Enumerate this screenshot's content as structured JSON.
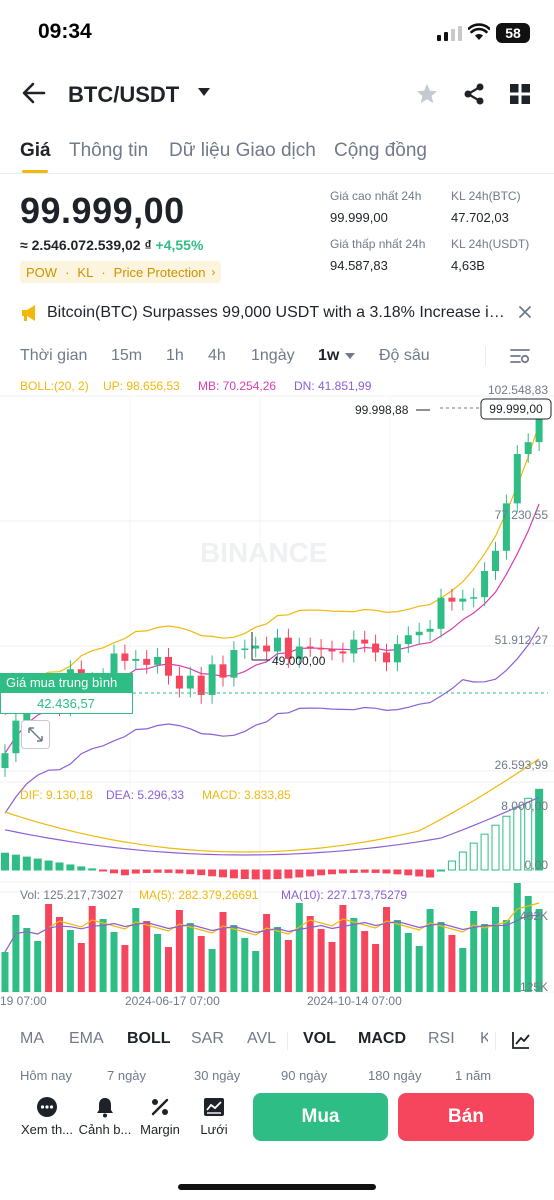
{
  "status": {
    "time": "09:34",
    "battery": "58"
  },
  "header": {
    "pair": "BTC/USDT"
  },
  "tabs": [
    "Giá",
    "Thông tin",
    "Dữ liệu Giao dịch",
    "Cộng đồng"
  ],
  "ticker": {
    "last_price": "99.999,00",
    "fiat_value": "≈ 2.546.072.539,02 ₫",
    "change": "+4,55%",
    "tags": [
      "POW",
      "KL",
      "Price Protection"
    ],
    "stats": {
      "high_label": "Giá cao nhất 24h",
      "high": "99.999,00",
      "vol_btc_label": "KL 24h(BTC)",
      "vol_btc": "47.702,03",
      "low_label": "Giá thấp nhất 24h",
      "low": "94.587,83",
      "vol_usdt_label": "KL 24h(USDT)",
      "vol_usdt": "4,63B"
    }
  },
  "news": {
    "text": "Bitcoin(BTC) Surpasses 99,000 USDT with a 3.18% Increase in..."
  },
  "timeframes": [
    "Thời gian",
    "15m",
    "1h",
    "4h",
    "1ngày",
    "1w",
    "Độ sâu"
  ],
  "selected_timeframe": "1w",
  "chart": {
    "boll_legend": {
      "boll": "BOLL:(20, 2)",
      "up": "UP: 98.656,53",
      "mb": "MB: 70.254,26",
      "dn": "DN: 41.851,99"
    },
    "price_axis": [
      "102.548,83",
      "77.230,55",
      "51.912,27",
      "26.593,99"
    ],
    "last_price_tag": "99.999,00",
    "high_marker": "99.998,88",
    "low_marker": "49.000,00",
    "avg_buy_label": "Giá mua trung bình",
    "avg_buy_value": "42.436,57",
    "watermark": "BINANCE",
    "macd_legend": {
      "dif": "DIF: 9.130,18",
      "dea": "DEA: 5.296,33",
      "macd": "MACD: 3.833,85"
    },
    "macd_axis": [
      "8.000,00",
      "0,00"
    ],
    "vol_legend": {
      "vol": "Vol: 125.217,73027",
      "ma5": "MA(5): 282.379,26691",
      "ma10": "MA(10): 227.173,75279"
    },
    "vol_axis": [
      "482K",
      "125K"
    ],
    "date_axis": [
      "19 07:00",
      "2024-06-17 07:00",
      "2024-10-14 07:00"
    ]
  },
  "chart_data": {
    "type": "candlestick",
    "candle_count": 48,
    "y_range": [
      26593.99,
      102548.83
    ],
    "last_close": 99999.0,
    "period_high": 99998.88,
    "period_low": 49000.0,
    "boll": {
      "up": 98656.53,
      "mb": 70254.26,
      "dn": 41851.99
    },
    "avg_buy": 42436.57,
    "macd": {
      "dif": 9130.18,
      "dea": 5296.33,
      "macd": 3833.85
    },
    "volume": {
      "last": 125217.73027,
      "ma5": 282379.26691,
      "ma10": 227173.75279
    }
  },
  "indicators": [
    "MA",
    "EMA",
    "BOLL",
    "SAR",
    "AVL",
    "VOL",
    "MACD",
    "RSI",
    "K"
  ],
  "active_indicators": [
    "BOLL",
    "VOL",
    "MACD"
  ],
  "periods": [
    "Hôm nay",
    "7 ngày",
    "30 ngày",
    "90 ngày",
    "180 ngày",
    "1 năm"
  ],
  "bottom_actions": [
    "Xem th...",
    "Cảnh b...",
    "Margin",
    "Lưới"
  ],
  "buttons": {
    "buy": "Mua",
    "sell": "Bán"
  },
  "colors": {
    "up": "#2ebd85",
    "down": "#f6465d",
    "accent": "#f0b90b"
  }
}
